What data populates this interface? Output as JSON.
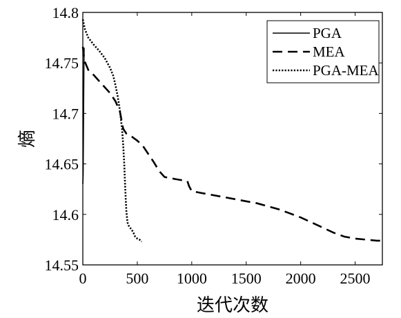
{
  "chart_data": {
    "type": "line",
    "title": "",
    "xlabel": "迭代次数",
    "ylabel": "熵",
    "xlim": [
      0,
      2750
    ],
    "ylim": [
      14.55,
      14.8
    ],
    "xticks": [
      0,
      500,
      1000,
      1500,
      2000,
      2500
    ],
    "xtick_labels": [
      "0",
      "500",
      "1000",
      "1500",
      "2000",
      "2500"
    ],
    "yticks": [
      14.55,
      14.6,
      14.65,
      14.7,
      14.75,
      14.8
    ],
    "ytick_labels": [
      "14.55",
      "14.6",
      "14.65",
      "14.7",
      "14.75",
      "14.8"
    ],
    "grid": false,
    "legend_position": "top-right",
    "series": [
      {
        "name": "PGA",
        "style": "solid",
        "color": "#000000",
        "x": [
          0,
          3,
          6,
          8,
          10,
          12
        ],
        "y": [
          14.63,
          14.64,
          14.68,
          14.72,
          14.75,
          14.765
        ]
      },
      {
        "name": "MEA",
        "style": "dashed",
        "color": "#000000",
        "x": [
          0,
          15,
          50,
          100,
          150,
          200,
          250,
          300,
          340,
          370,
          400,
          450,
          500,
          550,
          600,
          650,
          700,
          750,
          800,
          850,
          900,
          960,
          975,
          1000,
          1100,
          1200,
          1300,
          1400,
          1500,
          1600,
          1700,
          1800,
          1900,
          2000,
          2100,
          2200,
          2300,
          2400,
          2500,
          2600,
          2700,
          2750
        ],
        "y": [
          14.766,
          14.752,
          14.743,
          14.738,
          14.732,
          14.726,
          14.72,
          14.712,
          14.702,
          14.685,
          14.68,
          14.677,
          14.673,
          14.668,
          14.66,
          14.652,
          14.643,
          14.637,
          14.636,
          14.635,
          14.634,
          14.633,
          14.628,
          14.623,
          14.621,
          14.619,
          14.617,
          14.615,
          14.613,
          14.611,
          14.608,
          14.605,
          14.601,
          14.597,
          14.592,
          14.587,
          14.582,
          14.578,
          14.576,
          14.575,
          14.574,
          14.574
        ]
      },
      {
        "name": "PGA-MEA",
        "style": "dotted",
        "color": "#000000",
        "x": [
          0,
          20,
          50,
          100,
          150,
          200,
          250,
          280,
          300,
          320,
          340,
          360,
          370,
          380,
          390,
          400,
          410,
          420,
          440,
          460,
          480,
          500,
          520,
          540
        ],
        "y": [
          14.793,
          14.783,
          14.775,
          14.768,
          14.762,
          14.755,
          14.745,
          14.737,
          14.728,
          14.717,
          14.703,
          14.685,
          14.67,
          14.65,
          14.625,
          14.603,
          14.592,
          14.589,
          14.586,
          14.583,
          14.578,
          14.576,
          14.575,
          14.573
        ]
      }
    ]
  }
}
